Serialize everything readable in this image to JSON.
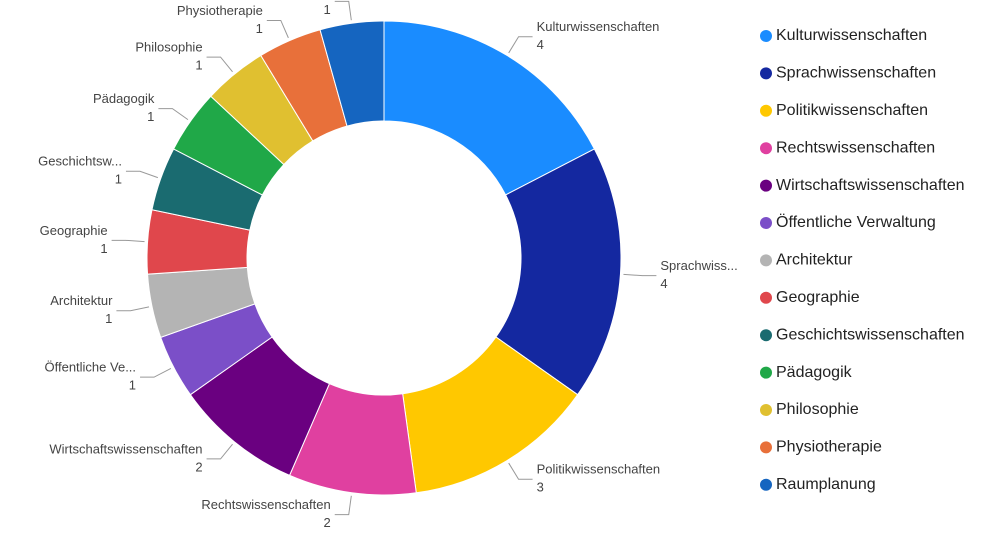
{
  "chart_data": {
    "type": "donut",
    "categories": [
      "Kulturwissenschaften",
      "Sprachwissenschaften",
      "Politikwissenschaften",
      "Rechtswissenschaften",
      "Wirtschaftswissenschaften",
      "Öffentliche Verwaltung",
      "Architektur",
      "Geographie",
      "Geschichtswissenschaften",
      "Pädagogik",
      "Philosophie",
      "Physiotherapie",
      "Raumplanung"
    ],
    "slice_labels": [
      "Kulturwissenschaften",
      "Sprachwiss...",
      "Politikwissenschaften",
      "Rechtswissenschaften",
      "Wirtschaftswissenschaften",
      "Öffentliche Ve...",
      "Architektur",
      "Geographie",
      "Geschichtsw...",
      "Pädagogik",
      "Philosophie",
      "Physiotherapie",
      "Raumplanung"
    ],
    "values": [
      4,
      4,
      3,
      2,
      2,
      1,
      1,
      1,
      1,
      1,
      1,
      1,
      1
    ],
    "colors": [
      "#1a8cff",
      "#1428a0",
      "#ffc800",
      "#e040a0",
      "#6a0080",
      "#7b4fc8",
      "#b4b4b4",
      "#e0474c",
      "#1a6b70",
      "#20a848",
      "#e0c030",
      "#e8703a",
      "#1565c0"
    ],
    "legend": "right"
  }
}
